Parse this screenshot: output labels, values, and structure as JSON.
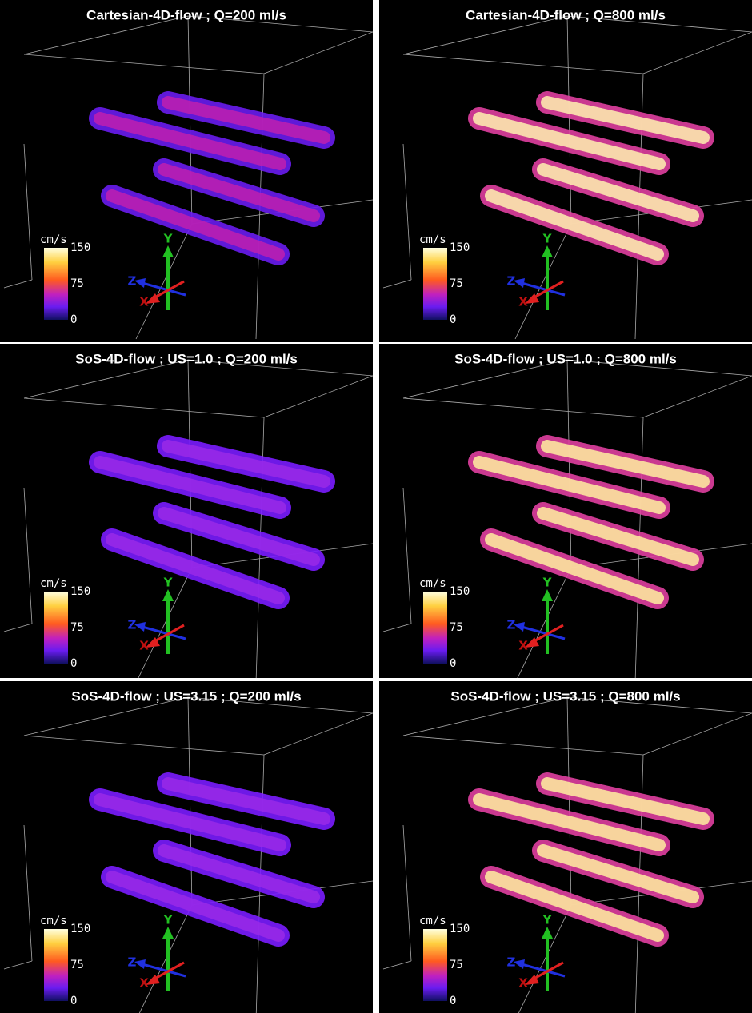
{
  "colorbar": {
    "unit": "cm/s",
    "ticks": [
      150,
      75,
      0
    ]
  },
  "axes": {
    "x": "X",
    "y": "Y",
    "z": "Z"
  },
  "panels": [
    {
      "title": "Cartesian-4D-flow ; Q=200 ml/s",
      "tube_color": "#6a1cf0",
      "tube_core": "#c020b0"
    },
    {
      "title": "Cartesian-4D-flow ; Q=800 ml/s",
      "tube_color": "#e040a0",
      "tube_core": "#fff2b0"
    },
    {
      "title": "SoS-4D-flow ; US=1.0 ; Q=200 ml/s",
      "tube_color": "#7a1cff",
      "tube_core": "#9a2ae8"
    },
    {
      "title": "SoS-4D-flow ; US=1.0 ; Q=800 ml/s",
      "tube_color": "#e040a0",
      "tube_core": "#fff0a0"
    },
    {
      "title": "SoS-4D-flow ; US=3.15 ; Q=200 ml/s",
      "tube_color": "#7a1cff",
      "tube_core": "#9a2ae8"
    },
    {
      "title": "SoS-4D-flow ; US=3.15 ; Q=800 ml/s",
      "tube_color": "#e040a0",
      "tube_core": "#fff0a0"
    }
  ]
}
